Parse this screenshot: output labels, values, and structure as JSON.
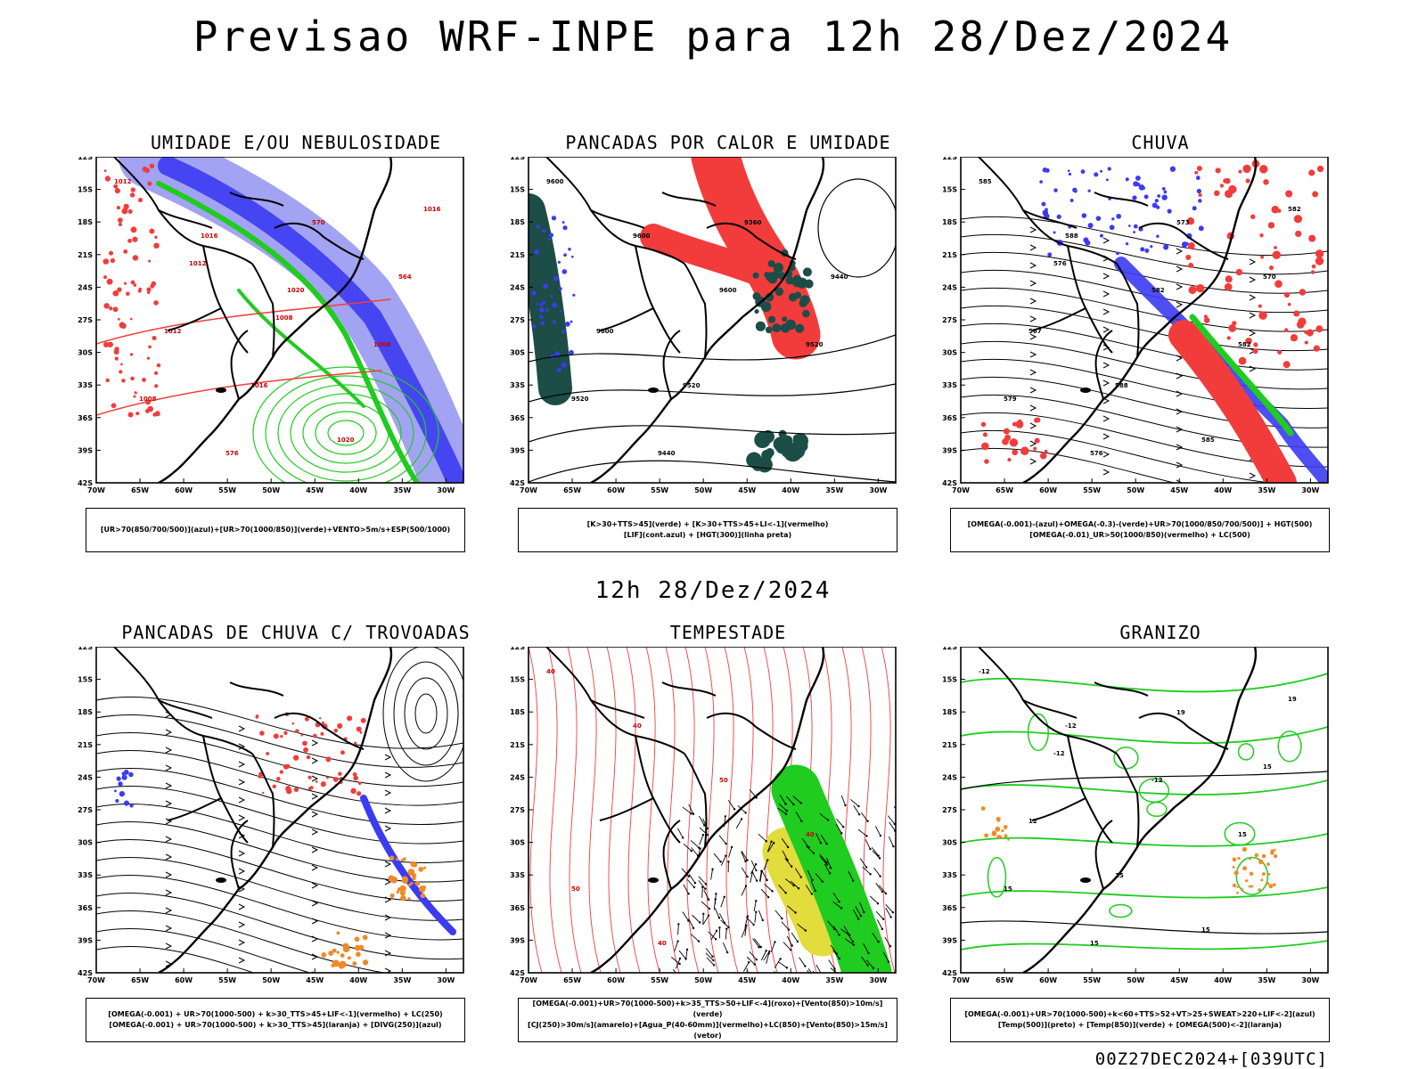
{
  "main_title": "Previsao WRF-INPE  para 12h 28/Dez/2024",
  "mid_title": "12h 28/Dez/2024",
  "footer": "00Z27DEC2024+[039UTC]",
  "lat_labels": [
    "12S",
    "15S",
    "18S",
    "21S",
    "24S",
    "27S",
    "30S",
    "33S",
    "36S",
    "39S",
    "42S"
  ],
  "lon_labels": [
    "70W",
    "65W",
    "60W",
    "55W",
    "50W",
    "45W",
    "40W",
    "35W",
    "30W"
  ],
  "colors": {
    "blue": "#3b3bf2",
    "green": "#1fcc1f",
    "red": "#f23c3c",
    "orange": "#f08a28",
    "yellow": "#e2dc3c",
    "darkgreen": "#1c4d47",
    "lavender": "#8c8cf0"
  },
  "panels": [
    {
      "id": "umidade",
      "title": "UMIDADE E/OU NEBULOSIDADE",
      "caption": [
        "[UR>70(850/700/500)](azul)+[UR>70(1000/850)](verde)+VENTO>5m/s+ESP(500/1000)"
      ],
      "contour_labels": [
        "1012",
        "1016",
        "1020",
        "1008",
        "1008",
        "576",
        "570",
        "564",
        "1012",
        "1016",
        "1020",
        "1016",
        "1012",
        "1008"
      ]
    },
    {
      "id": "pancadas_calor",
      "title": "PANCADAS POR CALOR E UMIDADE",
      "caption": [
        "[K>30+TTS>45](verde) + [K>30+TTS>45+LI<-1](vermelho)",
        "[LIF](cont.azul) + [HGT(300)](linha preta)"
      ],
      "contour_labels": [
        "9600",
        "9600",
        "9600",
        "9520",
        "9520",
        "9440",
        "9360",
        "9440",
        "9600",
        "9520"
      ]
    },
    {
      "id": "chuva",
      "title": "CHUVA",
      "caption": [
        "[OMEGA(-0.001)-(azul)+OMEGA(-0.3)-(verde)+UR>70(1000/850/700/500)] + HGT(500)",
        "[OMEGA(-0.01)_UR>50(1000/850)(vermelho) + LC(500)"
      ],
      "contour_labels": [
        "585",
        "588",
        "582",
        "582",
        "579",
        "576",
        "573",
        "570",
        "567",
        "588",
        "585",
        "582",
        "576"
      ]
    },
    {
      "id": "trovoadas",
      "title": "PANCADAS DE CHUVA C/ TROVOADAS",
      "caption": [
        "[OMEGA(-0.001) + UR>70(1000-500) + k>30_TTS>45+LIF<-1](vermelho) + LC(250)",
        "[OMEGA(-0.001) + UR>70(1000-500) + k>30_TTS>45](laranja) + [DIVG(250)](azul)"
      ],
      "contour_labels": []
    },
    {
      "id": "tempestade",
      "title": "TEMPESTADE",
      "caption": [
        "[OMEGA(-0.001)+UR>70(1000-500)+k>35_TTS>50+LIF<-4](roxo)+[Vento(850)>10m/s](verde)",
        "[CJ(250)>30m/s](amarelo)+[Agua_P(40-60mm)](vermelho)+LC(850)+[Vento(850)>15m/s](vetor)"
      ],
      "contour_labels": [
        "40",
        "40",
        "50",
        "40",
        "50",
        "40"
      ]
    },
    {
      "id": "granizo",
      "title": "GRANIZO",
      "caption": [
        "[OMEGA(-0.001)+UR>70(1000-500)+k<60+TTS>52+VT>25+SWEAT>220+LIF<-2](azul)",
        "[Temp(500)](preto) + [Temp(850)](verde) + [OMEGA(500)<-2](laranja)"
      ],
      "contour_labels": [
        "-12",
        "-12",
        "-12",
        "15",
        "15",
        "15",
        "19",
        "15",
        "12",
        "15",
        "15",
        "19",
        "-12"
      ]
    }
  ]
}
